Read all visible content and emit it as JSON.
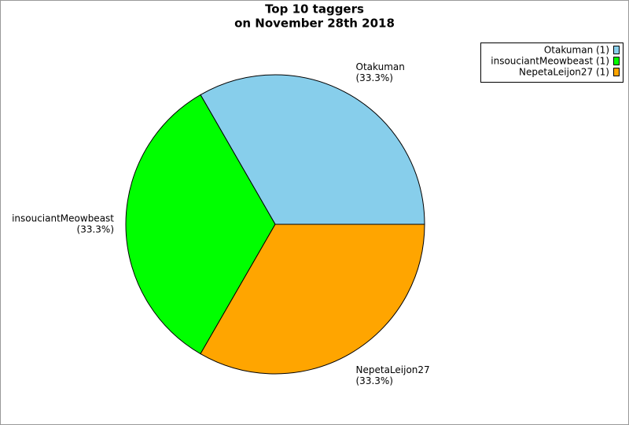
{
  "chart_data": {
    "type": "pie",
    "title": "Top 10 taggers",
    "subtitle": "on November 28th 2018",
    "categories": [
      "Otakuman",
      "insouciantMeowbeast",
      "NepetaLeijon27"
    ],
    "values": [
      33.3,
      33.3,
      33.3
    ],
    "value_labels": [
      "(33.3%)",
      "(33.3%)",
      "(33.3%)"
    ],
    "colors": [
      "#87ceeb",
      "#00ff00",
      "#ffa500"
    ],
    "legend_labels": [
      "Otakuman (1)",
      "insouciantMeowbeast (1)",
      "NepetaLeijon27 (1)"
    ],
    "legend": "top-right"
  }
}
